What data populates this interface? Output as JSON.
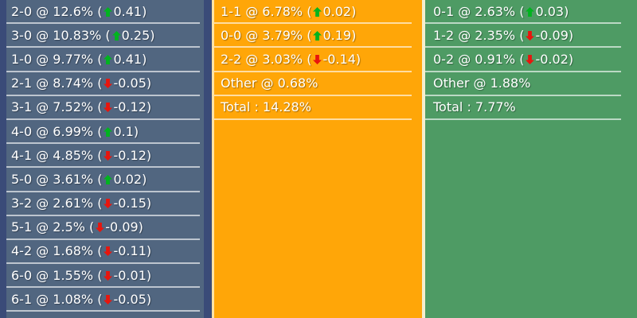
{
  "colors": {
    "home_panel_bg": "#516680",
    "home_panel_border": "#3a4b78",
    "draw_panel_bg": "#ffa608",
    "draw_panel_border_left": "#ffe3a6",
    "draw_panel_border_right": "#f6efcd",
    "away_panel_bg": "#4e9b64",
    "divider": "rgba(255,255,255,0.62)",
    "text": "#ffffff",
    "up_arrow": "#00b41e",
    "down_arrow": "#e8150d"
  },
  "separators": {
    "at": " @ ",
    "open_paren": " (",
    "close_paren": ")",
    "arrow_space": " ",
    "total_colon": " : "
  },
  "panels": [
    {
      "id": "home",
      "name": "home-win-scores-panel",
      "rows": [
        {
          "type": "score",
          "score": "2-0",
          "pct": "12.6%",
          "dir": "up",
          "delta": "0.41"
        },
        {
          "type": "score",
          "score": "3-0",
          "pct": "10.83%",
          "dir": "up",
          "delta": "0.25"
        },
        {
          "type": "score",
          "score": "1-0",
          "pct": "9.77%",
          "dir": "up",
          "delta": "0.41"
        },
        {
          "type": "score",
          "score": "2-1",
          "pct": "8.74%",
          "dir": "down",
          "delta": "-0.05"
        },
        {
          "type": "score",
          "score": "3-1",
          "pct": "7.52%",
          "dir": "down",
          "delta": "-0.12"
        },
        {
          "type": "score",
          "score": "4-0",
          "pct": "6.99%",
          "dir": "up",
          "delta": "0.1"
        },
        {
          "type": "score",
          "score": "4-1",
          "pct": "4.85%",
          "dir": "down",
          "delta": "-0.12"
        },
        {
          "type": "score",
          "score": "5-0",
          "pct": "3.61%",
          "dir": "up",
          "delta": "0.02"
        },
        {
          "type": "score",
          "score": "3-2",
          "pct": "2.61%",
          "dir": "down",
          "delta": "-0.15"
        },
        {
          "type": "score",
          "score": "5-1",
          "pct": "2.5%",
          "dir": "down",
          "delta": "-0.09"
        },
        {
          "type": "score",
          "score": "4-2",
          "pct": "1.68%",
          "dir": "down",
          "delta": "-0.11"
        },
        {
          "type": "score",
          "score": "6-0",
          "pct": "1.55%",
          "dir": "down",
          "delta": "-0.01"
        },
        {
          "type": "score",
          "score": "6-1",
          "pct": "1.08%",
          "dir": "down",
          "delta": "-0.05"
        }
      ]
    },
    {
      "id": "draw",
      "name": "draw-scores-panel",
      "rows": [
        {
          "type": "score",
          "score": "1-1",
          "pct": "6.78%",
          "dir": "up",
          "delta": "0.02"
        },
        {
          "type": "score",
          "score": "0-0",
          "pct": "3.79%",
          "dir": "up",
          "delta": "0.19"
        },
        {
          "type": "score",
          "score": "2-2",
          "pct": "3.03%",
          "dir": "down",
          "delta": "-0.14"
        },
        {
          "type": "other",
          "label": "Other",
          "pct": "0.68%"
        },
        {
          "type": "total",
          "label": "Total",
          "value": "14.28%"
        }
      ]
    },
    {
      "id": "away",
      "name": "away-win-scores-panel",
      "rows": [
        {
          "type": "score",
          "score": "0-1",
          "pct": "2.63%",
          "dir": "up",
          "delta": "0.03"
        },
        {
          "type": "score",
          "score": "1-2",
          "pct": "2.35%",
          "dir": "down",
          "delta": "-0.09"
        },
        {
          "type": "score",
          "score": "0-2",
          "pct": "0.91%",
          "dir": "down",
          "delta": "-0.02"
        },
        {
          "type": "other",
          "label": "Other",
          "pct": "1.88%"
        },
        {
          "type": "total",
          "label": "Total",
          "value": "7.77%"
        }
      ]
    }
  ]
}
